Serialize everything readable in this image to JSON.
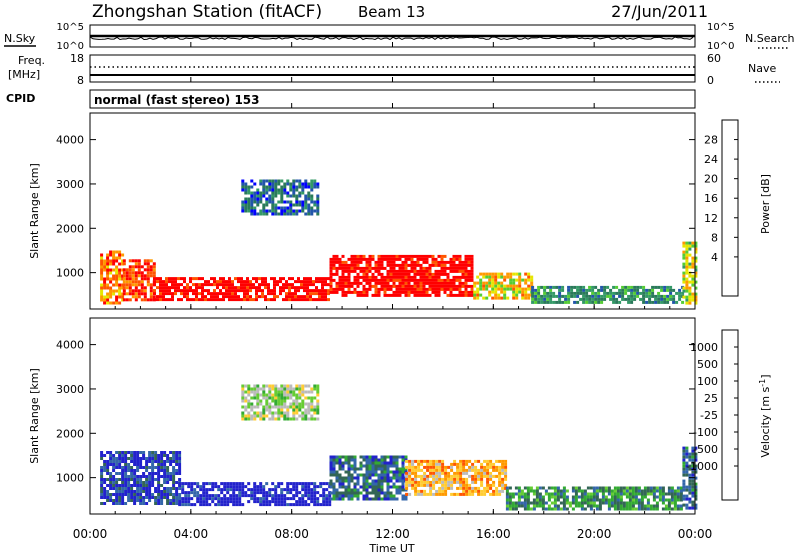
{
  "header": {
    "station": "Zhongshan Station (fitACF)",
    "beam": "Beam 13",
    "date": "27/Jun/2011"
  },
  "noise_panel": {
    "left_label": "N.Sky",
    "right_label": "N.Search",
    "left_ticks": [
      "10^5",
      "10^0"
    ],
    "right_ticks": [
      "10^5",
      "10^0"
    ]
  },
  "freq_panel": {
    "left_label_line1": "Freq.",
    "left_label_line2": "[MHz]",
    "right_label": "Nave",
    "left_ticks": [
      "18",
      "8"
    ],
    "right_ticks": [
      "60",
      "0"
    ]
  },
  "cpid_panel": {
    "label": "CPID",
    "mode": "normal (fast stereo) 153"
  },
  "x_axis": {
    "label": "Time UT",
    "ticks": [
      "00:00",
      "04:00",
      "08:00",
      "12:00",
      "16:00",
      "20:00",
      "00:00"
    ]
  },
  "chart_data": [
    {
      "type": "heatmap",
      "quantity": "power",
      "xlabel": "Time UT",
      "ylabel": "Slant Range [km]",
      "xlim": [
        0,
        24
      ],
      "ylim": [
        180,
        4600
      ],
      "yticks": [
        1000,
        2000,
        3000,
        4000
      ],
      "colorbar": {
        "label": "Power [dB]",
        "ticks": [
          "28",
          "24",
          "20",
          "16",
          "12",
          "8",
          "4"
        ],
        "colors": [
          "#ff0000",
          "#ff5500",
          "#ff9900",
          "#e6e600",
          "#55cc33",
          "#339966",
          "#2a7a5a",
          "#2255aa",
          "#0000ff"
        ]
      },
      "regions": [
        {
          "t0": 0.4,
          "t1": 1.3,
          "r0": 300,
          "r1": 1500,
          "level": 2
        },
        {
          "t0": 1.3,
          "t1": 2.5,
          "r0": 400,
          "r1": 1300,
          "level": 1
        },
        {
          "t0": 2.5,
          "t1": 9.5,
          "r0": 400,
          "r1": 900,
          "level": 0
        },
        {
          "t0": 9.5,
          "t1": 15.2,
          "r0": 500,
          "r1": 1400,
          "level": 0
        },
        {
          "t0": 15.2,
          "t1": 17.5,
          "r0": 400,
          "r1": 1000,
          "level": 3
        },
        {
          "t0": 17.5,
          "t1": 23.5,
          "r0": 300,
          "r1": 700,
          "level": 6
        },
        {
          "t0": 6.0,
          "t1": 9.0,
          "r0": 2300,
          "r1": 3100,
          "level": 7
        },
        {
          "t0": 23.5,
          "t1": 24.0,
          "r0": 300,
          "r1": 1700,
          "level": 4
        }
      ]
    },
    {
      "type": "heatmap",
      "quantity": "velocity",
      "xlabel": "Time UT",
      "ylabel": "Slant Range [km]",
      "xlim": [
        0,
        24
      ],
      "ylim": [
        180,
        4600
      ],
      "yticks": [
        1000,
        2000,
        3000,
        4000
      ],
      "colorbar": {
        "label": "Velocity [m s-1]",
        "label_main": "Velocity [m s",
        "label_sup": "-1",
        "label_end": "]",
        "ticks": [
          "1000",
          "500",
          "100",
          "25",
          "-25",
          "-100",
          "-500",
          "-1000"
        ],
        "colors": [
          "#2222cc",
          "#3366aa",
          "#336655",
          "#33aa33",
          "#66cc33",
          "#bbbbbb",
          "#ffcc33",
          "#ff9900",
          "#ff5500",
          "#ff0000"
        ]
      },
      "regions": [
        {
          "t0": 0.4,
          "t1": 3.5,
          "r0": 400,
          "r1": 1600,
          "level": 1
        },
        {
          "t0": 3.5,
          "t1": 9.5,
          "r0": 400,
          "r1": 900,
          "level": 0
        },
        {
          "t0": 9.5,
          "t1": 12.5,
          "r0": 500,
          "r1": 1500,
          "level": 2
        },
        {
          "t0": 12.5,
          "t1": 16.5,
          "r0": 600,
          "r1": 1400,
          "level": 7
        },
        {
          "t0": 16.5,
          "t1": 23.5,
          "r0": 300,
          "r1": 800,
          "level": 3
        },
        {
          "t0": 6.0,
          "t1": 9.0,
          "r0": 2300,
          "r1": 3100,
          "level": 5
        },
        {
          "t0": 23.5,
          "t1": 24.0,
          "r0": 300,
          "r1": 1700,
          "level": 2
        }
      ]
    }
  ]
}
